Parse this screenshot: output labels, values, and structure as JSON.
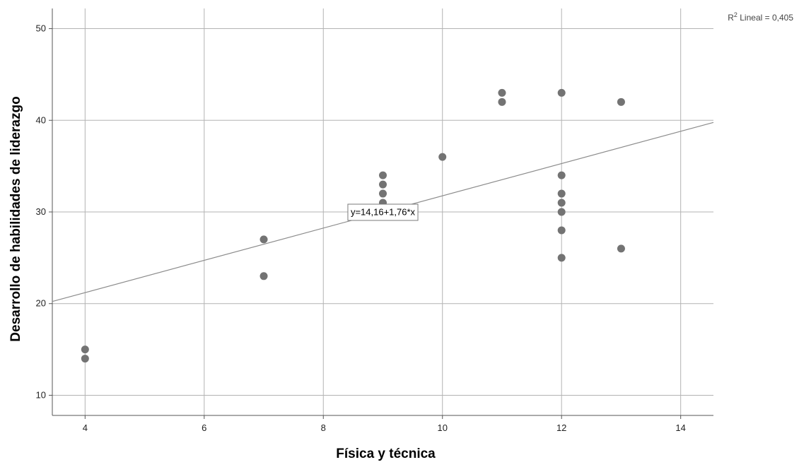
{
  "chart_data": {
    "type": "scatter",
    "xlabel": "Física y técnica",
    "ylabel": "Desarrollo de habilidades de liderazgo",
    "xlim": [
      3.45,
      14.55
    ],
    "ylim": [
      7.8,
      52.2
    ],
    "x_ticks": [
      4,
      6,
      8,
      10,
      12,
      14
    ],
    "y_ticks": [
      10,
      20,
      30,
      40,
      50
    ],
    "grid": true,
    "points": [
      {
        "x": 4,
        "y": 15
      },
      {
        "x": 4,
        "y": 14
      },
      {
        "x": 7,
        "y": 27
      },
      {
        "x": 7,
        "y": 23
      },
      {
        "x": 9,
        "y": 34
      },
      {
        "x": 9,
        "y": 33
      },
      {
        "x": 9,
        "y": 32
      },
      {
        "x": 9,
        "y": 31
      },
      {
        "x": 10,
        "y": 36
      },
      {
        "x": 11,
        "y": 43
      },
      {
        "x": 11,
        "y": 42
      },
      {
        "x": 12,
        "y": 43
      },
      {
        "x": 12,
        "y": 34
      },
      {
        "x": 12,
        "y": 32
      },
      {
        "x": 12,
        "y": 31
      },
      {
        "x": 12,
        "y": 30
      },
      {
        "x": 12,
        "y": 28
      },
      {
        "x": 12,
        "y": 25
      },
      {
        "x": 13,
        "y": 42
      },
      {
        "x": 13,
        "y": 26
      }
    ],
    "fit_line": {
      "intercept": 14.16,
      "slope": 1.76,
      "equation_label": "y=14,16+1,76*x",
      "label_anchor": {
        "x": 9.0,
        "y": 30.0
      }
    },
    "r2_label": {
      "prefix": "R",
      "superscript": "2",
      "text": " Lineal = 0,405"
    },
    "colors": {
      "points": "#737373",
      "fit_line": "#8c8c8c",
      "grid": "#b3b3b3",
      "axis": "#555555"
    }
  }
}
